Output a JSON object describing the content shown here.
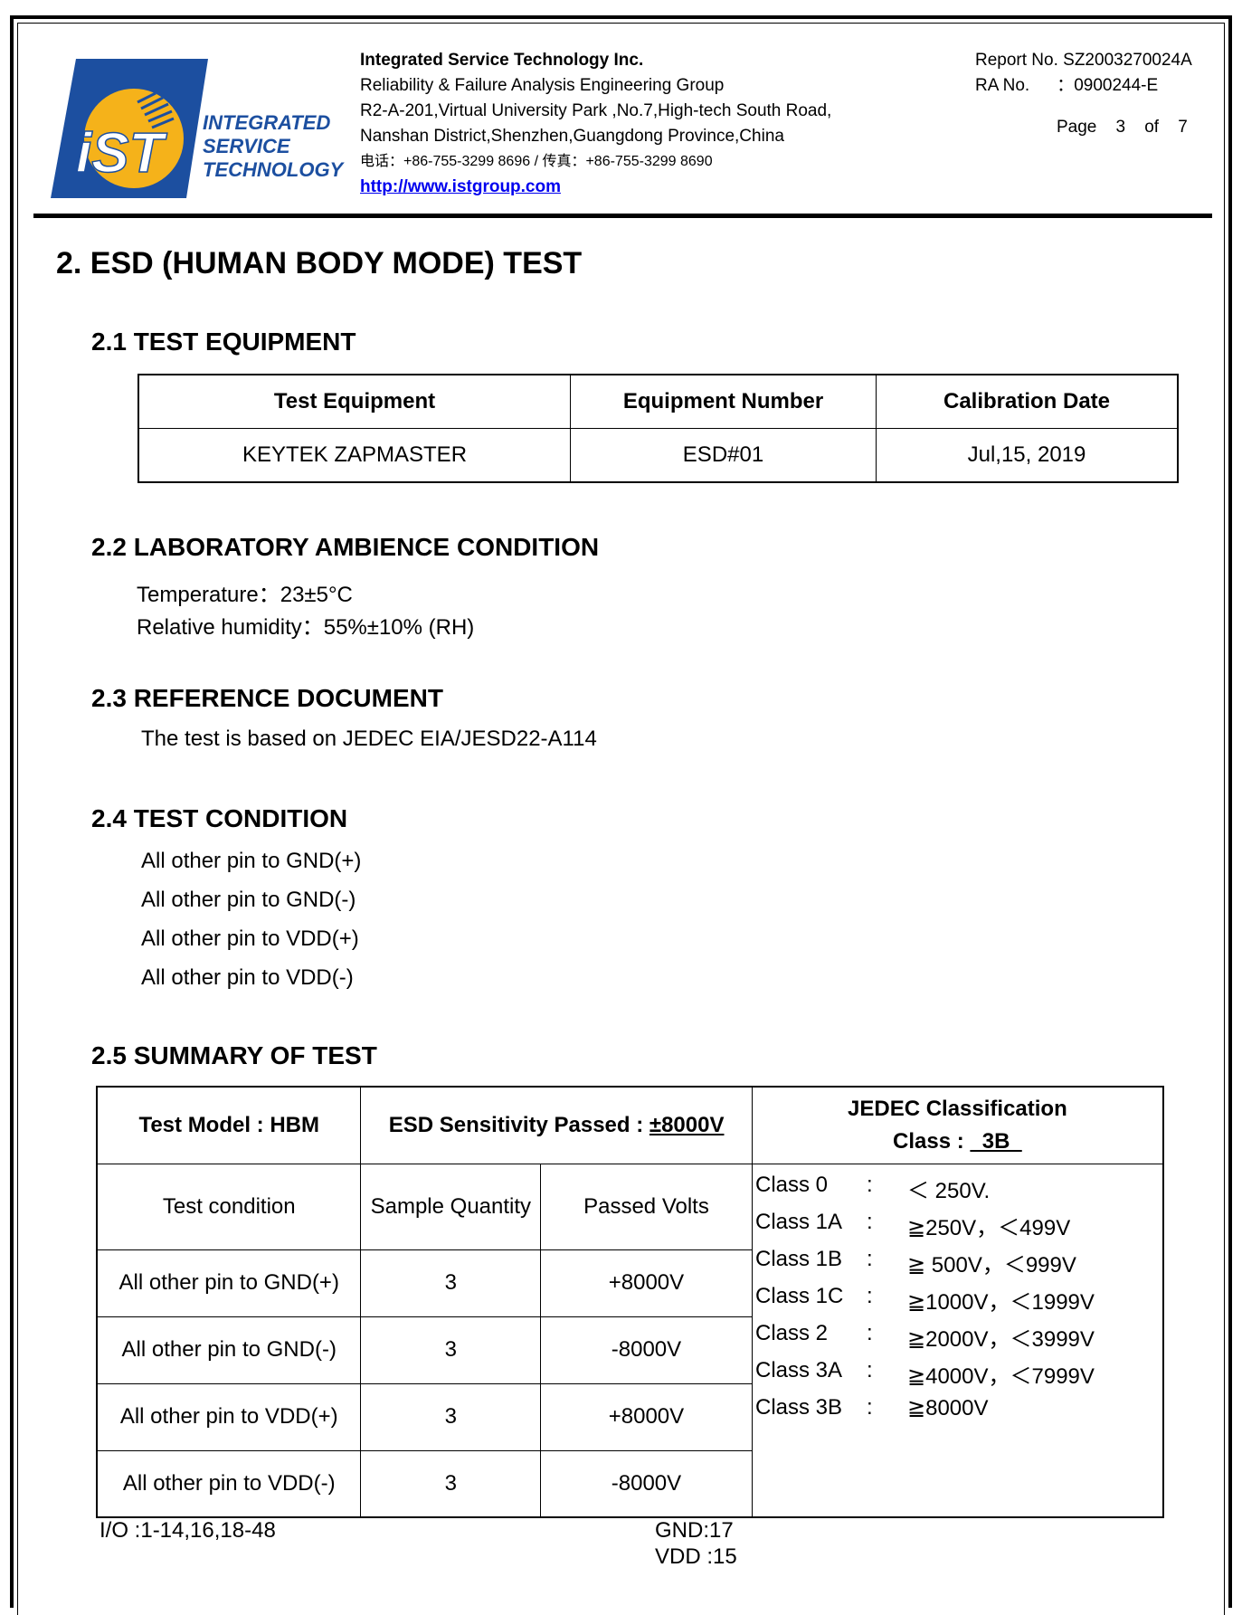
{
  "header": {
    "logo_text": "iST",
    "logo_caption": [
      "INTEGRATED",
      "SERVICE",
      "TECHNOLOGY"
    ],
    "company": "Integrated Service Technology Inc.",
    "group": "Reliability & Failure Analysis Engineering Group",
    "address1": "R2-A-201,Virtual University Park ,No.7,High-tech South Road,",
    "address2": "Nanshan District,Shenzhen,Guangdong Province,China",
    "phone": "电话：+86-755-3299 8696 /  传真：+86-755-3299 8690",
    "website": "http://www.istgroup.com",
    "report_no": "Report No. SZ2003270024A",
    "ra_label": "RA No.",
    "ra_value": "：0900244-E",
    "page_label": "Page",
    "page_current": "3",
    "page_of": "of",
    "page_total": "7",
    "colors": {
      "logo_blue": "#1c4fa0",
      "logo_yellow": "#f5b21a"
    }
  },
  "title": "2. ESD (HUMAN BODY MODE) TEST",
  "equipment": {
    "heading": "2.1 TEST EQUIPMENT",
    "columns": [
      "Test Equipment",
      "Equipment Number",
      "Calibration Date"
    ],
    "row": [
      "KEYTEK ZAPMASTER",
      "ESD#01",
      "Jul,15, 2019"
    ]
  },
  "ambience": {
    "heading": "2.2 LABORATORY AMBIENCE CONDITION",
    "temperature": "Temperature：23±5°C",
    "humidity": "Relative humidity：55%±10% (RH)"
  },
  "reference": {
    "heading": "2.3 REFERENCE DOCUMENT",
    "text": "The test is based on JEDEC EIA/JESD22-A114"
  },
  "condition": {
    "heading": "2.4 TEST CONDITION",
    "items": [
      "All other pin to GND(+)",
      "All other pin to GND(-)",
      "All other pin to VDD(+)",
      "All other pin to VDD(-)"
    ]
  },
  "summary": {
    "heading": "2.5 SUMMARY OF TEST",
    "model": "Test Model : HBM",
    "sensitivity_label": "ESD Sensitivity Passed : ",
    "sensitivity_value": "±8000V",
    "jedec_title": "JEDEC Classification",
    "class_label": "Class : ",
    "class_value": "  3B  ",
    "columns": [
      "Test condition",
      "Sample Quantity",
      "Passed Volts"
    ],
    "rows": [
      [
        "All other pin to GND(+)",
        "3",
        "+8000V"
      ],
      [
        "All other pin to GND(-)",
        "3",
        "-8000V"
      ],
      [
        "All other pin to VDD(+)",
        "3",
        "+8000V"
      ],
      [
        "All other pin to VDD(-)",
        "3",
        "-8000V"
      ]
    ],
    "classes": [
      {
        "name": "Class 0",
        "sep": ":",
        "range": "＜ 250V."
      },
      {
        "name": "Class 1A",
        "sep": ":",
        "range": "≧250V，＜499V"
      },
      {
        "name": "Class 1B",
        "sep": ":",
        "range": "≧ 500V，＜999V"
      },
      {
        "name": "Class 1C",
        "sep": ":",
        "range": "≧1000V，＜1999V"
      },
      {
        "name": "Class 2",
        "sep": ":",
        "range": "≧2000V，＜3999V"
      },
      {
        "name": "Class 3A",
        "sep": ":",
        "range": "≧4000V，＜7999V"
      },
      {
        "name": "Class 3B",
        "sep": ":",
        "range": "≧8000V"
      }
    ],
    "io": "I/O :1-14,16,18-48",
    "gnd": "GND:17",
    "vdd": "VDD :15"
  }
}
